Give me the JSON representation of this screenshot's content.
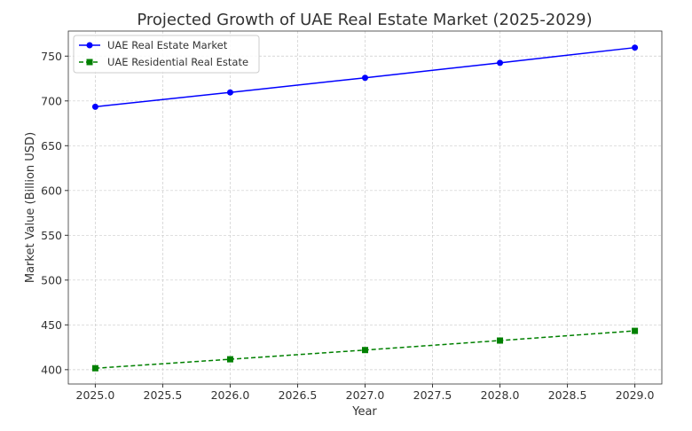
{
  "chart_data": {
    "type": "line",
    "title": "Projected Growth of UAE Real Estate Market (2025-2029)",
    "xlabel": "Year",
    "ylabel": "Market Value (Billion USD)",
    "x": [
      2025,
      2026,
      2027,
      2028,
      2029
    ],
    "xlim": [
      2024.8,
      2029.2
    ],
    "ylim": [
      384,
      778
    ],
    "xticks": [
      "2025.0",
      "2025.5",
      "2026.0",
      "2026.5",
      "2027.0",
      "2027.5",
      "2028.0",
      "2028.5",
      "2029.0"
    ],
    "yticks": [
      "400",
      "450",
      "500",
      "550",
      "600",
      "650",
      "700",
      "750"
    ],
    "grid": true,
    "legend_position": "top-left",
    "series": [
      {
        "name": "UAE Real Estate Market",
        "values": [
          693.5,
          709.5,
          725.8,
          742.5,
          759.5
        ],
        "color": "#0000ff",
        "marker": "circle",
        "linestyle": "solid"
      },
      {
        "name": "UAE Residential Real Estate",
        "values": [
          401.6,
          411.6,
          421.9,
          432.5,
          443.3
        ],
        "color": "#008000",
        "marker": "square",
        "linestyle": "dashed"
      }
    ]
  }
}
